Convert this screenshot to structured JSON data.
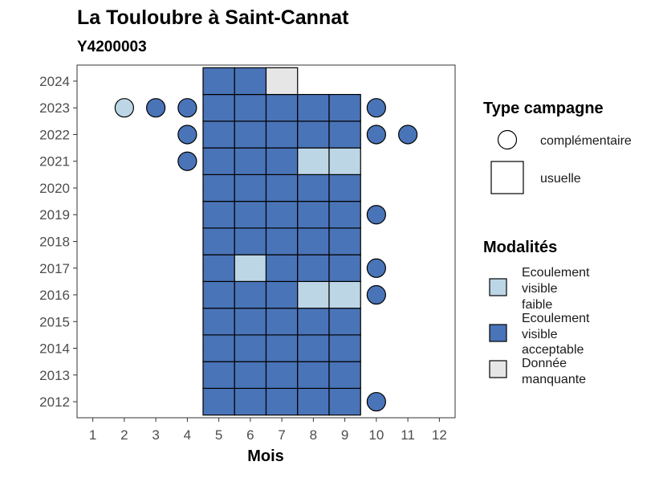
{
  "chart_data": {
    "type": "heatmap",
    "title": "La Touloubre à Saint-Cannat",
    "subtitle": "Y4200003",
    "xlabel": "Mois",
    "ylabel": "",
    "x_ticks": [
      1,
      2,
      3,
      4,
      5,
      6,
      7,
      8,
      9,
      10,
      11,
      12
    ],
    "y_ticks": [
      2012,
      2013,
      2014,
      2015,
      2016,
      2017,
      2018,
      2019,
      2020,
      2021,
      2022,
      2023,
      2024
    ],
    "xlim": [
      0.5,
      12.5
    ],
    "ylim": [
      2011.4,
      2024.6
    ],
    "colors": {
      "Ecoulement visible faible": "#bcd6e6",
      "Ecoulement visible acceptable": "#4a74b8",
      "Donnée manquante": "#e6e6e6"
    },
    "points": [
      {
        "month": 5,
        "year": 2012,
        "type": "usuelle",
        "modalite": "Ecoulement visible acceptable"
      },
      {
        "month": 6,
        "year": 2012,
        "type": "usuelle",
        "modalite": "Ecoulement visible acceptable"
      },
      {
        "month": 7,
        "year": 2012,
        "type": "usuelle",
        "modalite": "Ecoulement visible acceptable"
      },
      {
        "month": 8,
        "year": 2012,
        "type": "usuelle",
        "modalite": "Ecoulement visible acceptable"
      },
      {
        "month": 9,
        "year": 2012,
        "type": "usuelle",
        "modalite": "Ecoulement visible acceptable"
      },
      {
        "month": 10,
        "year": 2012,
        "type": "complémentaire",
        "modalite": "Ecoulement visible acceptable"
      },
      {
        "month": 5,
        "year": 2013,
        "type": "usuelle",
        "modalite": "Ecoulement visible acceptable"
      },
      {
        "month": 6,
        "year": 2013,
        "type": "usuelle",
        "modalite": "Ecoulement visible acceptable"
      },
      {
        "month": 7,
        "year": 2013,
        "type": "usuelle",
        "modalite": "Ecoulement visible acceptable"
      },
      {
        "month": 8,
        "year": 2013,
        "type": "usuelle",
        "modalite": "Ecoulement visible acceptable"
      },
      {
        "month": 9,
        "year": 2013,
        "type": "usuelle",
        "modalite": "Ecoulement visible acceptable"
      },
      {
        "month": 5,
        "year": 2014,
        "type": "usuelle",
        "modalite": "Ecoulement visible acceptable"
      },
      {
        "month": 6,
        "year": 2014,
        "type": "usuelle",
        "modalite": "Ecoulement visible acceptable"
      },
      {
        "month": 7,
        "year": 2014,
        "type": "usuelle",
        "modalite": "Ecoulement visible acceptable"
      },
      {
        "month": 8,
        "year": 2014,
        "type": "usuelle",
        "modalite": "Ecoulement visible acceptable"
      },
      {
        "month": 9,
        "year": 2014,
        "type": "usuelle",
        "modalite": "Ecoulement visible acceptable"
      },
      {
        "month": 5,
        "year": 2015,
        "type": "usuelle",
        "modalite": "Ecoulement visible acceptable"
      },
      {
        "month": 6,
        "year": 2015,
        "type": "usuelle",
        "modalite": "Ecoulement visible acceptable"
      },
      {
        "month": 7,
        "year": 2015,
        "type": "usuelle",
        "modalite": "Ecoulement visible acceptable"
      },
      {
        "month": 8,
        "year": 2015,
        "type": "usuelle",
        "modalite": "Ecoulement visible acceptable"
      },
      {
        "month": 9,
        "year": 2015,
        "type": "usuelle",
        "modalite": "Ecoulement visible acceptable"
      },
      {
        "month": 5,
        "year": 2016,
        "type": "usuelle",
        "modalite": "Ecoulement visible acceptable"
      },
      {
        "month": 6,
        "year": 2016,
        "type": "usuelle",
        "modalite": "Ecoulement visible acceptable"
      },
      {
        "month": 7,
        "year": 2016,
        "type": "usuelle",
        "modalite": "Ecoulement visible acceptable"
      },
      {
        "month": 8,
        "year": 2016,
        "type": "usuelle",
        "modalite": "Ecoulement visible faible"
      },
      {
        "month": 9,
        "year": 2016,
        "type": "usuelle",
        "modalite": "Ecoulement visible faible"
      },
      {
        "month": 10,
        "year": 2016,
        "type": "complémentaire",
        "modalite": "Ecoulement visible acceptable"
      },
      {
        "month": 5,
        "year": 2017,
        "type": "usuelle",
        "modalite": "Ecoulement visible acceptable"
      },
      {
        "month": 6,
        "year": 2017,
        "type": "usuelle",
        "modalite": "Ecoulement visible faible"
      },
      {
        "month": 7,
        "year": 2017,
        "type": "usuelle",
        "modalite": "Ecoulement visible acceptable"
      },
      {
        "month": 8,
        "year": 2017,
        "type": "usuelle",
        "modalite": "Ecoulement visible acceptable"
      },
      {
        "month": 9,
        "year": 2017,
        "type": "usuelle",
        "modalite": "Ecoulement visible acceptable"
      },
      {
        "month": 10,
        "year": 2017,
        "type": "complémentaire",
        "modalite": "Ecoulement visible acceptable"
      },
      {
        "month": 5,
        "year": 2018,
        "type": "usuelle",
        "modalite": "Ecoulement visible acceptable"
      },
      {
        "month": 6,
        "year": 2018,
        "type": "usuelle",
        "modalite": "Ecoulement visible acceptable"
      },
      {
        "month": 7,
        "year": 2018,
        "type": "usuelle",
        "modalite": "Ecoulement visible acceptable"
      },
      {
        "month": 8,
        "year": 2018,
        "type": "usuelle",
        "modalite": "Ecoulement visible acceptable"
      },
      {
        "month": 9,
        "year": 2018,
        "type": "usuelle",
        "modalite": "Ecoulement visible acceptable"
      },
      {
        "month": 5,
        "year": 2019,
        "type": "usuelle",
        "modalite": "Ecoulement visible acceptable"
      },
      {
        "month": 6,
        "year": 2019,
        "type": "usuelle",
        "modalite": "Ecoulement visible acceptable"
      },
      {
        "month": 7,
        "year": 2019,
        "type": "usuelle",
        "modalite": "Ecoulement visible acceptable"
      },
      {
        "month": 8,
        "year": 2019,
        "type": "usuelle",
        "modalite": "Ecoulement visible acceptable"
      },
      {
        "month": 9,
        "year": 2019,
        "type": "usuelle",
        "modalite": "Ecoulement visible acceptable"
      },
      {
        "month": 10,
        "year": 2019,
        "type": "complémentaire",
        "modalite": "Ecoulement visible acceptable"
      },
      {
        "month": 5,
        "year": 2020,
        "type": "usuelle",
        "modalite": "Ecoulement visible acceptable"
      },
      {
        "month": 6,
        "year": 2020,
        "type": "usuelle",
        "modalite": "Ecoulement visible acceptable"
      },
      {
        "month": 7,
        "year": 2020,
        "type": "usuelle",
        "modalite": "Ecoulement visible acceptable"
      },
      {
        "month": 8,
        "year": 2020,
        "type": "usuelle",
        "modalite": "Ecoulement visible acceptable"
      },
      {
        "month": 9,
        "year": 2020,
        "type": "usuelle",
        "modalite": "Ecoulement visible acceptable"
      },
      {
        "month": 4,
        "year": 2021,
        "type": "complémentaire",
        "modalite": "Ecoulement visible acceptable"
      },
      {
        "month": 5,
        "year": 2021,
        "type": "usuelle",
        "modalite": "Ecoulement visible acceptable"
      },
      {
        "month": 6,
        "year": 2021,
        "type": "usuelle",
        "modalite": "Ecoulement visible acceptable"
      },
      {
        "month": 7,
        "year": 2021,
        "type": "usuelle",
        "modalite": "Ecoulement visible acceptable"
      },
      {
        "month": 8,
        "year": 2021,
        "type": "usuelle",
        "modalite": "Ecoulement visible faible"
      },
      {
        "month": 9,
        "year": 2021,
        "type": "usuelle",
        "modalite": "Ecoulement visible faible"
      },
      {
        "month": 4,
        "year": 2022,
        "type": "complémentaire",
        "modalite": "Ecoulement visible acceptable"
      },
      {
        "month": 5,
        "year": 2022,
        "type": "usuelle",
        "modalite": "Ecoulement visible acceptable"
      },
      {
        "month": 6,
        "year": 2022,
        "type": "usuelle",
        "modalite": "Ecoulement visible acceptable"
      },
      {
        "month": 7,
        "year": 2022,
        "type": "usuelle",
        "modalite": "Ecoulement visible acceptable"
      },
      {
        "month": 8,
        "year": 2022,
        "type": "usuelle",
        "modalite": "Ecoulement visible acceptable"
      },
      {
        "month": 9,
        "year": 2022,
        "type": "usuelle",
        "modalite": "Ecoulement visible acceptable"
      },
      {
        "month": 10,
        "year": 2022,
        "type": "complémentaire",
        "modalite": "Ecoulement visible acceptable"
      },
      {
        "month": 11,
        "year": 2022,
        "type": "complémentaire",
        "modalite": "Ecoulement visible acceptable"
      },
      {
        "month": 2,
        "year": 2023,
        "type": "complémentaire",
        "modalite": "Ecoulement visible faible"
      },
      {
        "month": 3,
        "year": 2023,
        "type": "complémentaire",
        "modalite": "Ecoulement visible acceptable"
      },
      {
        "month": 4,
        "year": 2023,
        "type": "complémentaire",
        "modalite": "Ecoulement visible acceptable"
      },
      {
        "month": 5,
        "year": 2023,
        "type": "usuelle",
        "modalite": "Ecoulement visible acceptable"
      },
      {
        "month": 6,
        "year": 2023,
        "type": "usuelle",
        "modalite": "Ecoulement visible acceptable"
      },
      {
        "month": 7,
        "year": 2023,
        "type": "usuelle",
        "modalite": "Ecoulement visible acceptable"
      },
      {
        "month": 8,
        "year": 2023,
        "type": "usuelle",
        "modalite": "Ecoulement visible acceptable"
      },
      {
        "month": 9,
        "year": 2023,
        "type": "usuelle",
        "modalite": "Ecoulement visible acceptable"
      },
      {
        "month": 10,
        "year": 2023,
        "type": "complémentaire",
        "modalite": "Ecoulement visible acceptable"
      },
      {
        "month": 5,
        "year": 2024,
        "type": "usuelle",
        "modalite": "Ecoulement visible acceptable"
      },
      {
        "month": 6,
        "year": 2024,
        "type": "usuelle",
        "modalite": "Ecoulement visible acceptable"
      },
      {
        "month": 7,
        "year": 2024,
        "type": "usuelle",
        "modalite": "Donnée manquante"
      }
    ],
    "legend": {
      "position": "right",
      "type_title": "Type campagne",
      "type_entries": [
        {
          "label": "complémentaire",
          "shape": "circle"
        },
        {
          "label": "usuelle",
          "shape": "square"
        }
      ],
      "modalite_title": "Modalités",
      "modalite_entries": [
        {
          "lines": [
            "Ecoulement",
            "visible",
            "faible"
          ],
          "color": "#bcd6e6"
        },
        {
          "lines": [
            "Ecoulement",
            "visible",
            "acceptable"
          ],
          "color": "#4a74b8"
        },
        {
          "lines": [
            "Donnée",
            "manquante"
          ],
          "color": "#e6e6e6"
        }
      ]
    },
    "grid": false
  }
}
